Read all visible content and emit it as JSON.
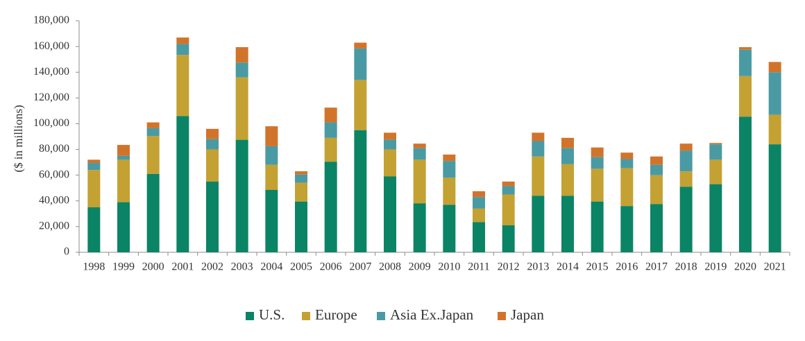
{
  "chart_data": {
    "type": "bar",
    "stacked": true,
    "title": "",
    "xlabel": "",
    "ylabel": "($ in millions)",
    "ylim": [
      0,
      180000
    ],
    "yticks": [
      0,
      20000,
      40000,
      60000,
      80000,
      100000,
      120000,
      140000,
      160000,
      180000
    ],
    "ytick_labels": [
      "0",
      "20,000",
      "40,000",
      "60,000",
      "80,000",
      "100,000",
      "120,000",
      "140,000",
      "160,000",
      "180,000"
    ],
    "grid": false,
    "legend_position": "bottom",
    "categories": [
      "1998",
      "1999",
      "2000",
      "2001",
      "2002",
      "2003",
      "2004",
      "2005",
      "2006",
      "2007",
      "2008",
      "2009",
      "2010",
      "2011",
      "2012",
      "2013",
      "2014",
      "2015",
      "2016",
      "2017",
      "2018",
      "2019",
      "2020",
      "2021"
    ],
    "series": [
      {
        "name": "U.S.",
        "color": "#0b8466",
        "values": [
          35000,
          39000,
          61000,
          106000,
          55000,
          87500,
          48500,
          39500,
          70500,
          95000,
          59000,
          38000,
          37000,
          23500,
          21000,
          44000,
          44000,
          39500,
          36000,
          37500,
          51000,
          53000,
          105500,
          84000
        ]
      },
      {
        "name": "Europe",
        "color": "#c4a133",
        "values": [
          29000,
          33000,
          29500,
          47500,
          25000,
          48500,
          19500,
          14500,
          18500,
          39000,
          21000,
          34000,
          21000,
          10500,
          24000,
          30500,
          24500,
          25500,
          29500,
          22500,
          12000,
          19000,
          31500,
          23000
        ]
      },
      {
        "name": "Asia Ex.Japan",
        "color": "#4a9aa3",
        "values": [
          5500,
          3000,
          6000,
          8500,
          8000,
          11500,
          14500,
          6500,
          12000,
          24500,
          7500,
          9000,
          13000,
          9000,
          6500,
          12000,
          12500,
          9000,
          7000,
          8000,
          16000,
          12000,
          20500,
          33000
        ]
      },
      {
        "name": "Japan",
        "color": "#d1742b",
        "values": [
          2500,
          8500,
          4500,
          5000,
          8000,
          12000,
          15500,
          2500,
          11500,
          4500,
          5500,
          3500,
          5000,
          4500,
          3500,
          6500,
          8000,
          7500,
          5000,
          6500,
          5500,
          1000,
          2000,
          8000
        ]
      }
    ]
  }
}
